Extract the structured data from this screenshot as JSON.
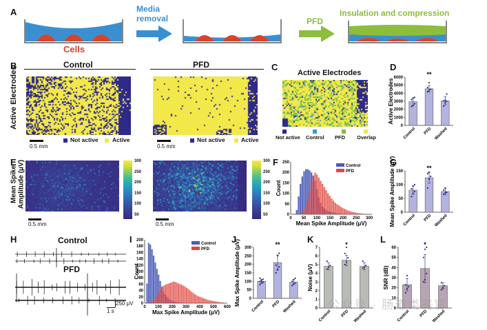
{
  "panel_letters": [
    "A",
    "B",
    "C",
    "D",
    "E",
    "F",
    "G",
    "H",
    "I",
    "J",
    "K",
    "L"
  ],
  "panelA": {
    "step1_label": "Cells",
    "arrow1_label_line1": "Media",
    "arrow1_label_line2": "removal",
    "arrow2_label": "PFD",
    "step3_label": "Insulation and compression",
    "colors": {
      "media": "#3b8fd0",
      "cells": "#d9432a",
      "pfd": "#8dbd3c",
      "arrow1": "#3b8fd0",
      "arrow2": "#8dbd3c"
    }
  },
  "panelB": {
    "row_label": "Active Electrodes",
    "control_title": "Control",
    "pfd_title": "PFD",
    "scale_bar": "0.5 mm",
    "legend": [
      {
        "label": "Not active",
        "color": "#2e2a8a"
      },
      {
        "label": "Active",
        "color": "#f2e84a"
      }
    ]
  },
  "panelC": {
    "title": "Active Electrodes",
    "legend": [
      {
        "label": "Not active",
        "color": "#2e2a8a"
      },
      {
        "label": "Control",
        "color": "#3a9bd8"
      },
      {
        "label": "PFD",
        "color": "#7ec04a"
      },
      {
        "label": "Overlap",
        "color": "#f2e84a"
      }
    ]
  },
  "panelE": {
    "row_label_line1": "Mean Spike",
    "row_label_line2": "Amplitude (μV)",
    "scale_bar": "0.5 mm",
    "colorbar_ticks": [
      "300",
      "250",
      "200",
      "150",
      "100",
      "50"
    ]
  },
  "panelH": {
    "control_title": "Control",
    "pfd_title": "PFD",
    "scale_amp": "250 μV",
    "scale_time": "1 s"
  },
  "watermark": "公众号 · 肠道类器官",
  "chart_data": [
    {
      "id": "D",
      "type": "bar",
      "title": "",
      "ylabel": "Active Electrodes",
      "categories": [
        "Control",
        "PFD",
        "Washed"
      ],
      "values": [
        2950,
        4550,
        3050
      ],
      "errors": [
        420,
        420,
        500
      ],
      "points": [
        [
          2350,
          2450,
          2700,
          3200,
          3400,
          3500
        ],
        [
          4200,
          4350,
          4500,
          4700,
          5300
        ],
        [
          2400,
          2800,
          3000,
          3050,
          3150,
          3900
        ]
      ],
      "significance": [
        "",
        "**",
        ""
      ],
      "ylim": [
        0,
        6000
      ],
      "yticks": [
        "0",
        "1000",
        "2000",
        "3000",
        "4000",
        "5000",
        "6000"
      ],
      "color": "#b3b3e0"
    },
    {
      "id": "F",
      "type": "bar",
      "title": "",
      "xlabel": "Mean Spike Amplitude (μV)",
      "ylabel": "Count",
      "xlim": [
        0,
        310
      ],
      "ylim": [
        0,
        250
      ],
      "xticks": [
        "0",
        "50",
        "100",
        "150",
        "200",
        "250",
        "300"
      ],
      "yticks": [
        "0",
        "50",
        "100",
        "150",
        "200",
        "250"
      ],
      "legend": [
        {
          "name": "Control",
          "color": "#4a5bb8"
        },
        {
          "name": "PFD",
          "color": "#e0473f"
        }
      ],
      "legend_position": "top-right",
      "bin_width": 7,
      "series": [
        {
          "name": "Control",
          "x_start": 20,
          "values": [
            20,
            85,
            145,
            180,
            205,
            215,
            215,
            210,
            200,
            185,
            160,
            120,
            80,
            55,
            38,
            28,
            20,
            15,
            12,
            10,
            8,
            6,
            5,
            4,
            3,
            2,
            2,
            1,
            1,
            1,
            0,
            0,
            0,
            0,
            0,
            0,
            0,
            0,
            0,
            0
          ]
        },
        {
          "name": "PFD",
          "x_start": 20,
          "values": [
            0,
            2,
            5,
            10,
            20,
            40,
            70,
            110,
            150,
            180,
            198,
            190,
            175,
            160,
            145,
            130,
            115,
            100,
            88,
            75,
            65,
            55,
            48,
            42,
            36,
            30,
            26,
            22,
            18,
            15,
            12,
            10,
            8,
            6,
            5,
            4,
            3,
            2,
            2,
            1
          ]
        }
      ]
    },
    {
      "id": "G",
      "type": "bar",
      "ylabel": "Mean Spike Amplitude (μV)",
      "categories": [
        "Control",
        "PFD",
        "Washed"
      ],
      "values": [
        80,
        125,
        75
      ],
      "errors": [
        15,
        20,
        12
      ],
      "points": [
        [
          57,
          68,
          75,
          85,
          95,
          100
        ],
        [
          88,
          120,
          130,
          140,
          145
        ],
        [
          65,
          70,
          72,
          80,
          88
        ]
      ],
      "significance": [
        "",
        "**",
        ""
      ],
      "ylim": [
        0,
        150
      ],
      "yticks": [
        "0",
        "50",
        "100",
        "150"
      ],
      "color": "#b3b3e0"
    },
    {
      "id": "I",
      "type": "bar",
      "xlabel": "Max Spike Amplitude (μV)",
      "ylabel": "Count",
      "xlim": [
        0,
        600
      ],
      "ylim": [
        0,
        200
      ],
      "xticks": [
        "0",
        "100",
        "200",
        "300",
        "400",
        "500",
        "600"
      ],
      "yticks": [
        "0",
        "20",
        "40",
        "60",
        "80",
        "100",
        "120",
        "140",
        "160",
        "180",
        "200"
      ],
      "legend": [
        {
          "name": "Control",
          "color": "#4a5bb8"
        },
        {
          "name": "PFD",
          "color": "#e0473f"
        }
      ],
      "legend_position": "top-right",
      "bin_width": 12,
      "series": [
        {
          "name": "Control",
          "x_start": 12,
          "values": [
            62,
            190,
            185,
            170,
            150,
            128,
            108,
            90,
            70,
            52,
            38,
            28,
            20,
            14,
            10,
            8,
            6,
            5,
            4,
            3,
            2,
            2,
            1,
            1,
            1,
            0,
            0,
            0,
            0,
            0,
            0,
            0,
            0,
            0,
            0,
            0,
            0,
            0,
            0,
            0,
            0,
            0,
            0,
            0,
            0,
            0,
            0
          ]
        },
        {
          "name": "PFD",
          "x_start": 12,
          "values": [
            0,
            1,
            2,
            4,
            8,
            14,
            22,
            32,
            42,
            50,
            55,
            58,
            60,
            62,
            64,
            66,
            68,
            67,
            65,
            62,
            60,
            58,
            55,
            52,
            48,
            45,
            40,
            36,
            32,
            28,
            25,
            22,
            20,
            18,
            16,
            14,
            12,
            10,
            9,
            8,
            7,
            6,
            5,
            4,
            3,
            2,
            2
          ]
        }
      ]
    },
    {
      "id": "J",
      "type": "bar",
      "ylabel": "Max Spike Amplitude (μV)",
      "categories": [
        "Control",
        "PFD",
        "Washed"
      ],
      "values": [
        100,
        210,
        95
      ],
      "errors": [
        12,
        45,
        15
      ],
      "points": [
        [
          80,
          90,
          95,
          100,
          105,
          112,
          118
        ],
        [
          150,
          170,
          185,
          195,
          250,
          265
        ],
        [
          75,
          85,
          90,
          100,
          110,
          118
        ]
      ],
      "significance": [
        "",
        "**",
        ""
      ],
      "ylim": [
        0,
        300
      ],
      "yticks": [
        "0",
        "50",
        "100",
        "150",
        "200",
        "250",
        "300"
      ],
      "color": "#b3b3e0"
    },
    {
      "id": "K",
      "type": "bar",
      "ylabel": "Noise (μV)",
      "categories": [
        "Control",
        "PFD",
        "Washed"
      ],
      "values": [
        4.8,
        5.5,
        4.8
      ],
      "errors": [
        0.4,
        0.6,
        0.4
      ],
      "points": [
        [
          4.5,
          4.7,
          4.9,
          5.4
        ],
        [
          5.0,
          5.3,
          5.8,
          6.3,
          7.0
        ],
        [
          4.6,
          4.7,
          4.9,
          5.4
        ]
      ],
      "significance": [
        "",
        "*",
        ""
      ],
      "ylim": [
        0,
        7
      ],
      "yticks": [
        "0",
        "1",
        "2",
        "3",
        "4",
        "5",
        "6",
        "7"
      ],
      "color": "#b8bcb4"
    },
    {
      "id": "L",
      "type": "bar",
      "ylabel": "SNR (dB)",
      "categories": [
        "Control",
        "PFD",
        "Washed"
      ],
      "values": [
        23,
        39,
        22
      ],
      "errors": [
        6,
        14,
        3
      ],
      "points": [
        [
          15,
          19,
          21,
          23,
          32
        ],
        [
          26,
          28,
          34,
          50,
          58,
          60
        ],
        [
          18,
          20,
          22,
          25
        ]
      ],
      "significance": [
        "",
        "*",
        ""
      ],
      "ylim": [
        0,
        60
      ],
      "yticks": [
        "0",
        "10",
        "20",
        "30",
        "40",
        "50",
        "60"
      ],
      "color": "#b8a4b4"
    }
  ]
}
